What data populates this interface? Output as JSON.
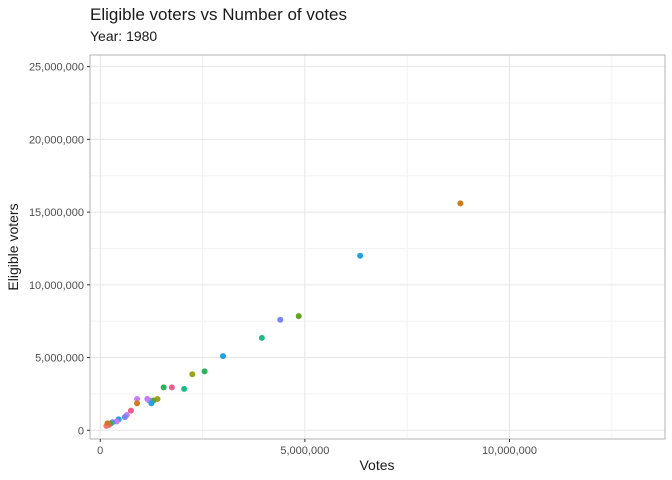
{
  "chart_data": {
    "type": "scatter",
    "title": "Eligible voters vs Number of votes",
    "subtitle": "Year: 1980",
    "xlabel": "Votes",
    "ylabel": "Eligible voters",
    "xlim": [
      -250000,
      13800000
    ],
    "ylim": [
      -600000,
      25800000
    ],
    "x_ticks": [
      0,
      5000000,
      10000000
    ],
    "x_tick_labels": [
      "0",
      "5,000,000",
      "10,000,000"
    ],
    "y_ticks": [
      0,
      5000000,
      10000000,
      15000000,
      20000000,
      25000000
    ],
    "y_tick_labels": [
      "0",
      "5,000,000",
      "10,000,000",
      "15,000,000",
      "20,000,000",
      "25,000,000"
    ],
    "grid": true,
    "legend": "none",
    "points": [
      {
        "x": 8800000,
        "y": 15600000,
        "color": "#D07A1E"
      },
      {
        "x": 6350000,
        "y": 12000000,
        "color": "#1FA3E0"
      },
      {
        "x": 4850000,
        "y": 7850000,
        "color": "#62A324"
      },
      {
        "x": 4400000,
        "y": 7600000,
        "color": "#7A84F2"
      },
      {
        "x": 3950000,
        "y": 6350000,
        "color": "#1FBA84"
      },
      {
        "x": 3000000,
        "y": 5100000,
        "color": "#1FA3E0"
      },
      {
        "x": 2550000,
        "y": 4050000,
        "color": "#29B35A"
      },
      {
        "x": 2250000,
        "y": 3850000,
        "color": "#9AA21E"
      },
      {
        "x": 2050000,
        "y": 2850000,
        "color": "#1FBA84"
      },
      {
        "x": 1750000,
        "y": 2950000,
        "color": "#F25C8C"
      },
      {
        "x": 1550000,
        "y": 2950000,
        "color": "#29B35A"
      },
      {
        "x": 1400000,
        "y": 2150000,
        "color": "#9AA21E"
      },
      {
        "x": 1300000,
        "y": 2050000,
        "color": "#62A324"
      },
      {
        "x": 1200000,
        "y": 2050000,
        "color": "#7A84F2"
      },
      {
        "x": 1250000,
        "y": 1850000,
        "color": "#1FA3E0"
      },
      {
        "x": 1150000,
        "y": 2150000,
        "color": "#C77CFF"
      },
      {
        "x": 900000,
        "y": 2150000,
        "color": "#C77CFF"
      },
      {
        "x": 900000,
        "y": 1850000,
        "color": "#D07A1E"
      },
      {
        "x": 750000,
        "y": 1350000,
        "color": "#F25C8C"
      },
      {
        "x": 650000,
        "y": 1050000,
        "color": "#C77CFF"
      },
      {
        "x": 600000,
        "y": 900000,
        "color": "#7A84F2"
      },
      {
        "x": 450000,
        "y": 750000,
        "color": "#1FA3E0"
      },
      {
        "x": 400000,
        "y": 600000,
        "color": "#C77CFF"
      },
      {
        "x": 300000,
        "y": 550000,
        "color": "#7A84F2"
      },
      {
        "x": 250000,
        "y": 450000,
        "color": "#29B35A"
      },
      {
        "x": 200000,
        "y": 350000,
        "color": "#F25C8C"
      },
      {
        "x": 150000,
        "y": 300000,
        "color": "#F8766D"
      },
      {
        "x": 180000,
        "y": 480000,
        "color": "#D07A1E"
      }
    ]
  },
  "colors": {
    "panel_border": "#b3b3b3",
    "grid_major": "#e6e6e6",
    "grid_minor": "#f2f2f2",
    "text": "#1a1a1a",
    "tick_text": "#4d4d4d"
  }
}
